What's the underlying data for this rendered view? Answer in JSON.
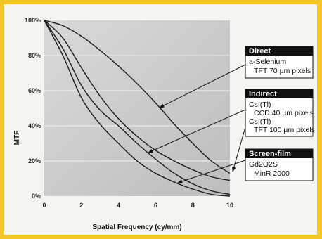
{
  "chart_data": {
    "type": "line",
    "xlabel": "Spatial Frequency (cy/mm)",
    "ylabel": "MTF",
    "xlim": [
      0,
      10
    ],
    "ylim": [
      0,
      100
    ],
    "x_ticks": [
      "0",
      "2",
      "4",
      "6",
      "8",
      "10"
    ],
    "y_ticks": [
      "0%",
      "20%",
      "40%",
      "60%",
      "80%",
      "100%"
    ],
    "grid": true,
    "series": [
      {
        "x": [
          0,
          1,
          2,
          3,
          4,
          5,
          6,
          7,
          8,
          9,
          10
        ],
        "y": [
          100,
          97,
          91,
          83,
          74,
          64,
          53,
          41,
          30,
          20,
          13
        ]
      },
      {
        "x": [
          0,
          1,
          2,
          3,
          4,
          5,
          6,
          7,
          8,
          9,
          10
        ],
        "y": [
          100,
          90,
          73,
          57,
          44,
          34,
          26,
          20,
          15,
          11,
          9
        ]
      },
      {
        "x": [
          0,
          1,
          2,
          3,
          4,
          5,
          6,
          7,
          8,
          9,
          10
        ],
        "y": [
          100,
          84,
          63,
          49,
          40,
          30,
          21,
          13,
          7,
          3,
          1
        ]
      },
      {
        "x": [
          0,
          1,
          2,
          3,
          4,
          5,
          6,
          7,
          8,
          9,
          10
        ],
        "y": [
          100,
          80,
          56,
          41,
          30,
          20,
          13,
          8,
          4,
          1,
          0
        ]
      }
    ],
    "legend": [
      {
        "header": "Direct",
        "lines": [
          "a-Selenium",
          "TFT 70 µm pixels"
        ]
      },
      {
        "header": "Indirect",
        "lines": [
          "CsI(Tl)",
          "CCD 40 µm pixels",
          "CsI(Tl)",
          "TFT 100 µm pixels"
        ]
      },
      {
        "header": "Screen-film",
        "lines": [
          "Gd2O2S",
          "MinR 2000"
        ]
      }
    ],
    "legend_placement": "right",
    "colors": {
      "border": "#f3c728",
      "plot_bg": "#c9c9c9",
      "line": "#1a1a1a",
      "legend_header": "#111111"
    }
  }
}
